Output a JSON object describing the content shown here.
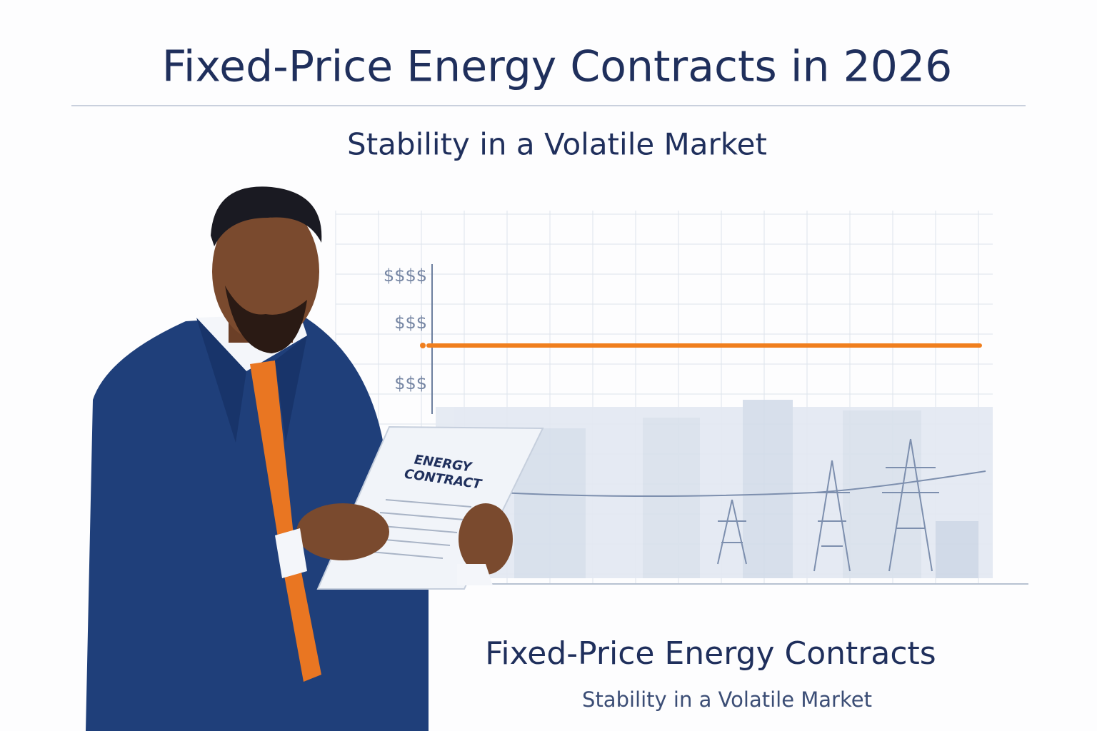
{
  "header": {
    "title": "Fixed-Price Energy Contracts in 2026",
    "subtitle": "Stability in a Volatile Market"
  },
  "chart": {
    "axis_labels": [
      "$$$$",
      "$$$",
      "$$$"
    ]
  },
  "document": {
    "lines": [
      "ENERGY",
      "CONTRACT"
    ]
  },
  "footer": {
    "title": "Fixed-Price Energy Contracts",
    "subtitle": "Stability in a Volatile Market"
  }
}
